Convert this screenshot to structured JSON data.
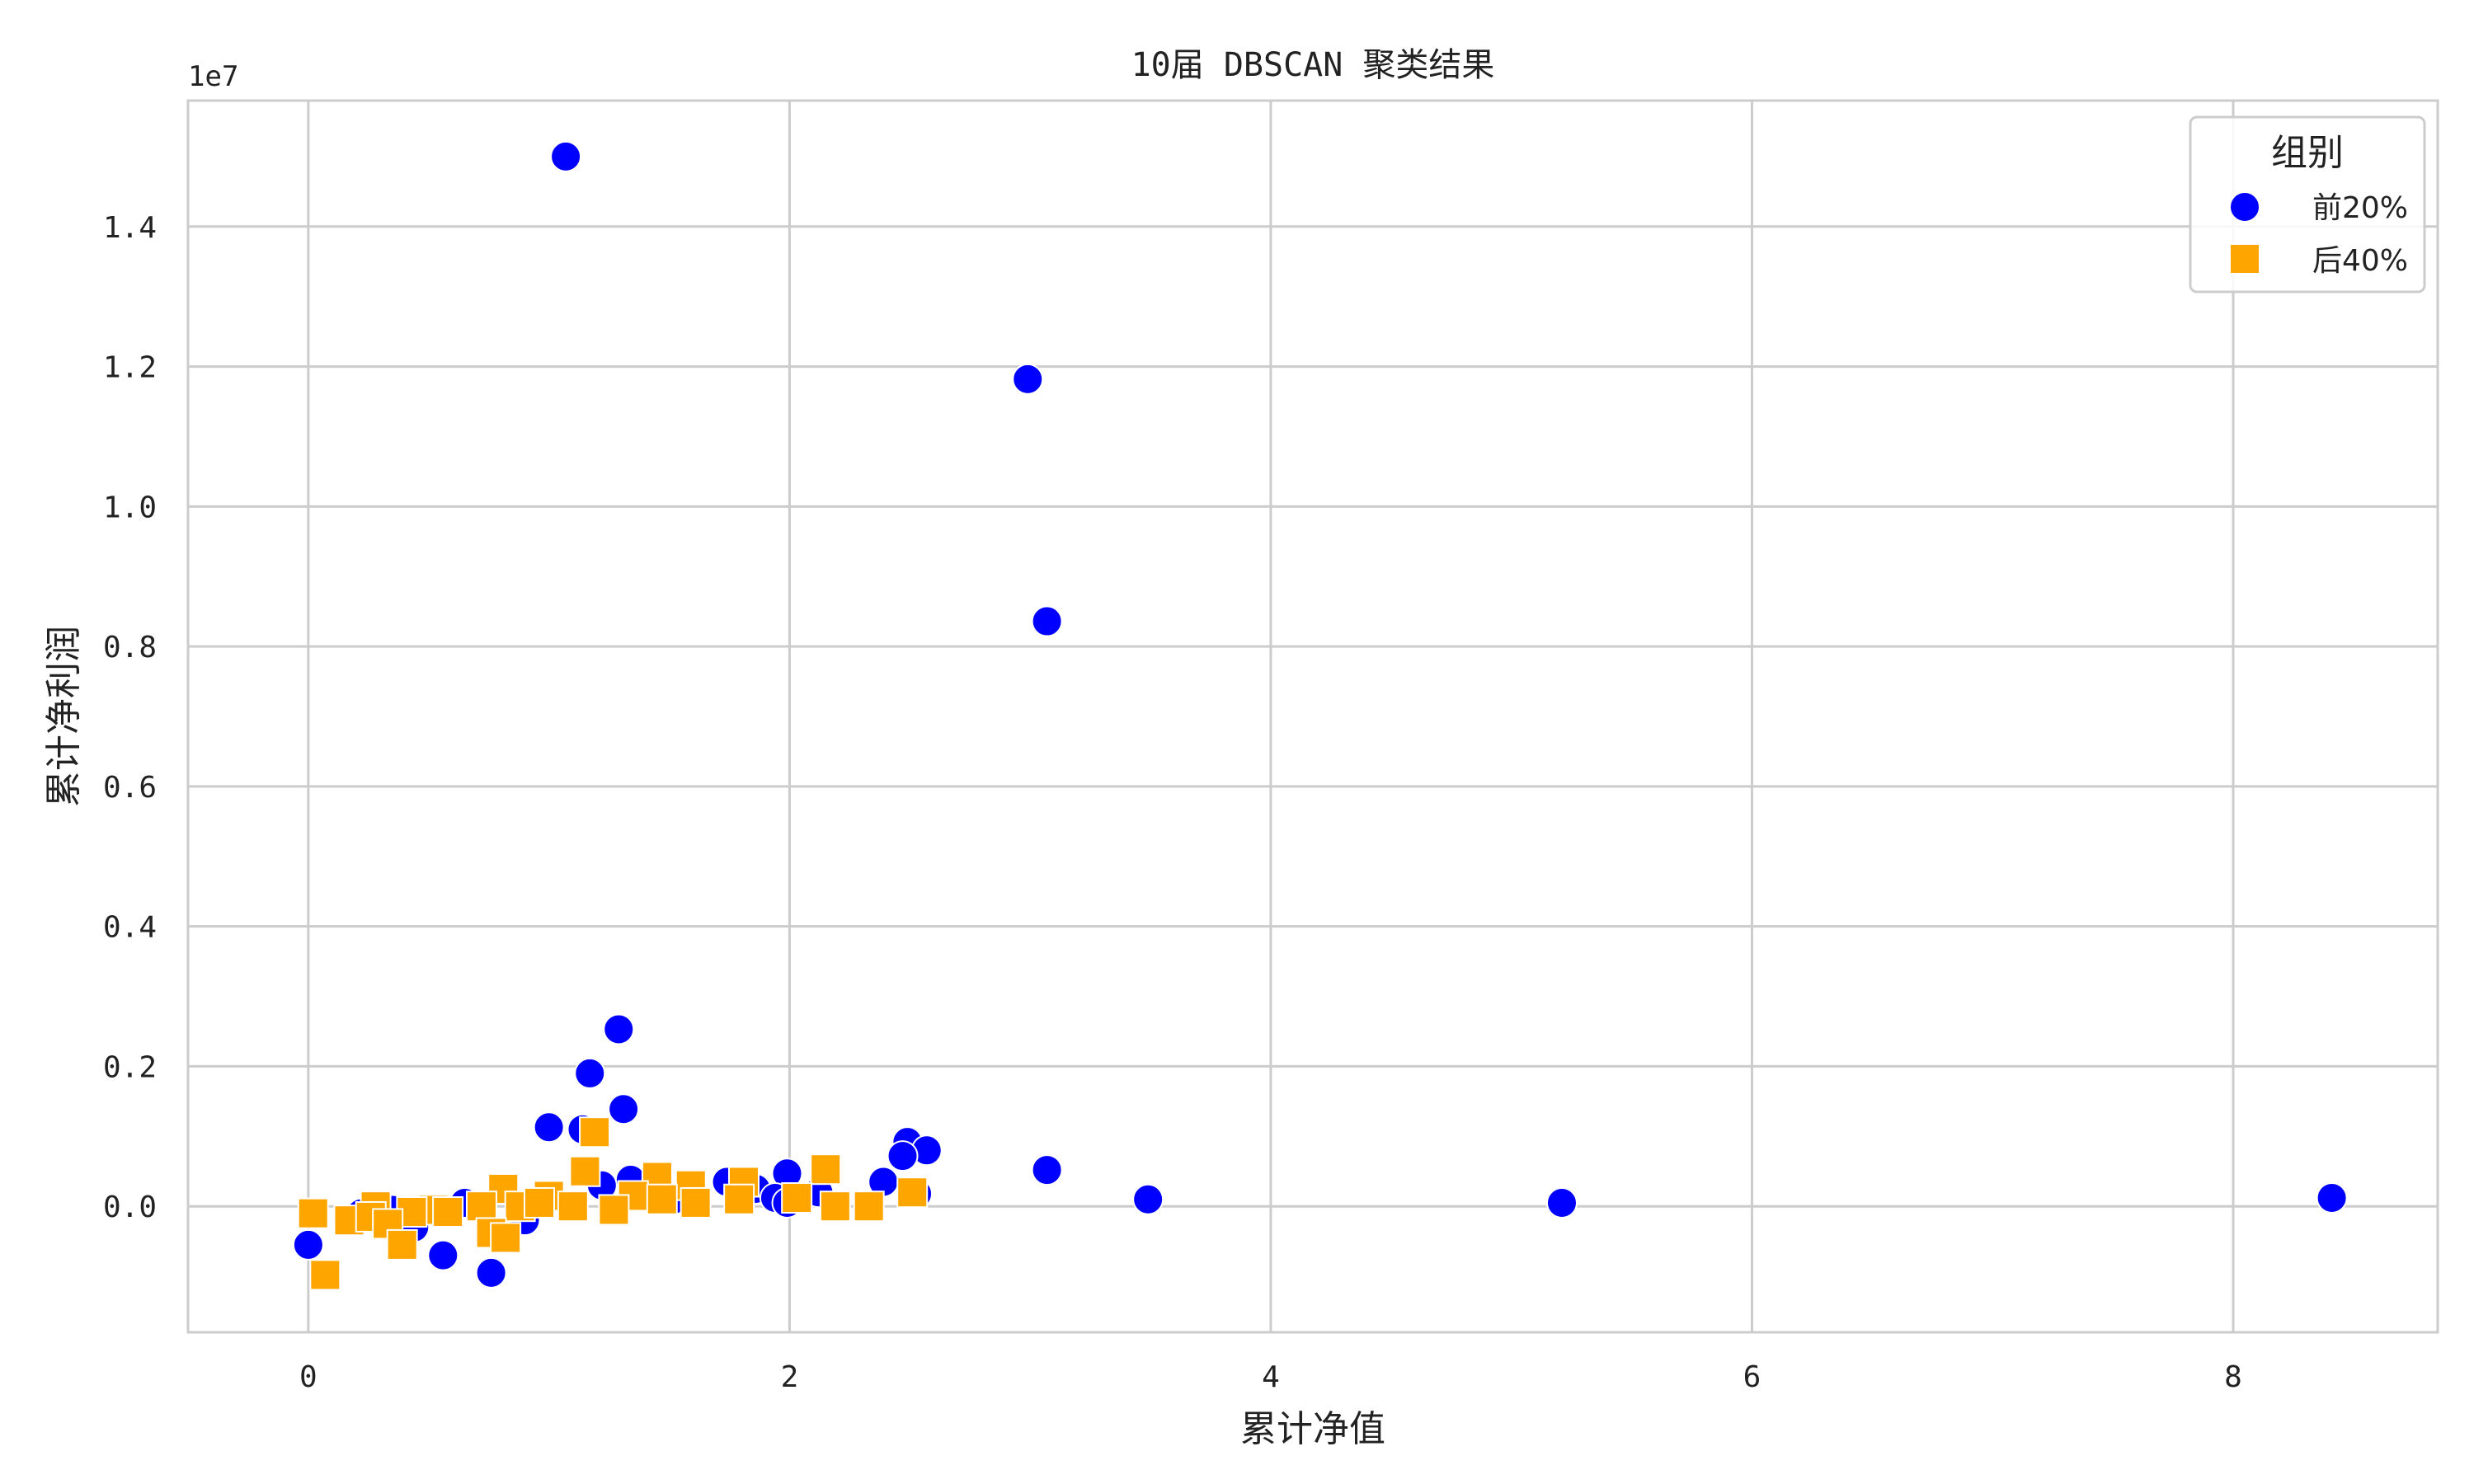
{
  "chart_data": {
    "type": "scatter",
    "title": "10届 DBSCAN 聚类结果",
    "xlabel": "累计净值",
    "ylabel": "累计净利润",
    "y_offset_label": "1e7",
    "xlim": [
      -0.5,
      8.85
    ],
    "ylim": [
      -1.8,
      15.8
    ],
    "y_scale": 10000000,
    "x_ticks": [
      0,
      2,
      4,
      6,
      8
    ],
    "x_tick_labels": [
      "0",
      "2",
      "4",
      "6",
      "8"
    ],
    "y_ticks": [
      0.0,
      0.2,
      0.4,
      0.6,
      0.8,
      1.0,
      1.2,
      1.4
    ],
    "y_tick_labels": [
      "0.0",
      "0.2",
      "0.4",
      "0.6",
      "0.8",
      "1.0",
      "1.2",
      "1.4"
    ],
    "grid": true,
    "legend": {
      "title": "组别",
      "position": "top-right"
    },
    "series": [
      {
        "name": "前20%",
        "color": "#0000ff",
        "marker": "circle",
        "points": [
          [
            1.07,
            15.0
          ],
          [
            2.99,
            11.82
          ],
          [
            3.07,
            8.36
          ],
          [
            1.29,
            2.53
          ],
          [
            1.17,
            1.9
          ],
          [
            1.31,
            1.39
          ],
          [
            1.0,
            1.13
          ],
          [
            1.14,
            1.1
          ],
          [
            2.49,
            0.92
          ],
          [
            2.57,
            0.8
          ],
          [
            2.47,
            0.72
          ],
          [
            3.07,
            0.52
          ],
          [
            1.99,
            0.47
          ],
          [
            2.39,
            0.35
          ],
          [
            1.74,
            0.35
          ],
          [
            1.34,
            0.38
          ],
          [
            1.22,
            0.3
          ],
          [
            1.86,
            0.25
          ],
          [
            2.12,
            0.2
          ],
          [
            2.53,
            0.18
          ],
          [
            1.94,
            0.12
          ],
          [
            1.99,
            0.05
          ],
          [
            1.52,
            0.1
          ],
          [
            3.49,
            0.1
          ],
          [
            5.21,
            0.05
          ],
          [
            8.41,
            0.12
          ],
          [
            0.0,
            -0.55
          ],
          [
            0.56,
            -0.7
          ],
          [
            0.76,
            -0.95
          ],
          [
            0.9,
            -0.2
          ],
          [
            0.44,
            -0.3
          ],
          [
            0.22,
            -0.1
          ],
          [
            0.65,
            0.05
          ],
          [
            0.35,
            -0.05
          ]
        ]
      },
      {
        "name": "后40%",
        "color": "#ffa500",
        "marker": "square",
        "points": [
          [
            1.19,
            1.06
          ],
          [
            2.15,
            0.53
          ],
          [
            1.15,
            0.5
          ],
          [
            1.45,
            0.42
          ],
          [
            1.81,
            0.35
          ],
          [
            0.81,
            0.25
          ],
          [
            1.59,
            0.3
          ],
          [
            1.0,
            0.15
          ],
          [
            1.35,
            0.15
          ],
          [
            2.51,
            0.2
          ],
          [
            2.03,
            0.12
          ],
          [
            1.79,
            0.1
          ],
          [
            1.47,
            0.1
          ],
          [
            1.61,
            0.05
          ],
          [
            2.19,
            0.0
          ],
          [
            2.33,
            0.0
          ],
          [
            1.27,
            -0.05
          ],
          [
            1.1,
            0.0
          ],
          [
            0.88,
            0.0
          ],
          [
            0.72,
            0.0
          ],
          [
            0.52,
            -0.05
          ],
          [
            0.43,
            -0.08
          ],
          [
            0.28,
            0.0
          ],
          [
            0.02,
            -0.1
          ],
          [
            0.17,
            -0.2
          ],
          [
            0.26,
            -0.15
          ],
          [
            0.33,
            -0.25
          ],
          [
            0.39,
            -0.55
          ],
          [
            0.76,
            -0.38
          ],
          [
            0.82,
            -0.45
          ],
          [
            0.07,
            -0.98
          ],
          [
            0.58,
            -0.08
          ],
          [
            0.96,
            0.05
          ]
        ]
      }
    ]
  }
}
